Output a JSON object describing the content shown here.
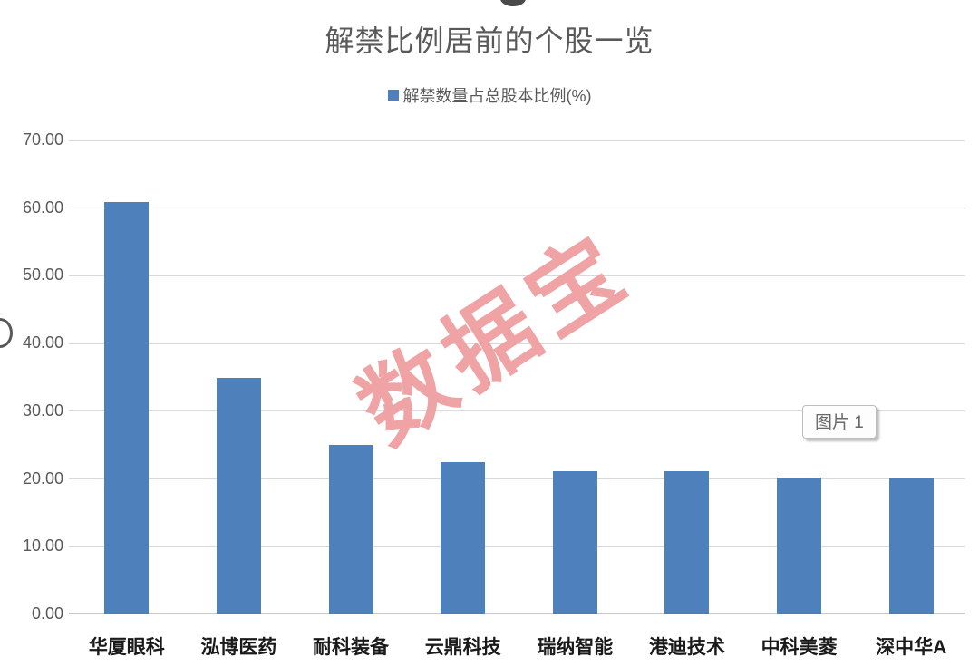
{
  "chart_data": {
    "type": "bar",
    "title": "解禁比例居前的个股一览",
    "legend_label": "解禁数量占总股本比例(%)",
    "legend_position": "top-center",
    "series_name": "解禁数量占总股本比例(%)",
    "categories": [
      "华厦眼科",
      "泓博医药",
      "耐科装备",
      "云鼎科技",
      "瑞纳智能",
      "港迪技术",
      "中科美菱",
      "深中华A"
    ],
    "values": [
      60.9,
      35.0,
      25.0,
      22.5,
      21.2,
      21.1,
      20.2,
      20.1
    ],
    "ylim": [
      0,
      70
    ],
    "ytick_step": 10,
    "ytick_labels": [
      "0.00",
      "10.00",
      "20.00",
      "30.00",
      "40.00",
      "50.00",
      "60.00",
      "70.00"
    ],
    "grid": true,
    "xlabel": "",
    "ylabel": ""
  },
  "watermark": {
    "text": "数据宝",
    "color": "#F0A3A4",
    "rotation_deg": -33
  },
  "floating_label": {
    "text": "图片 1"
  },
  "colors": {
    "bar": "#4E81BC",
    "grid": "#D9D9D9",
    "baseline": "#C6C6C6",
    "axis_text": "#595959",
    "title_text": "#595959",
    "category_text": "#1A1A1A"
  }
}
